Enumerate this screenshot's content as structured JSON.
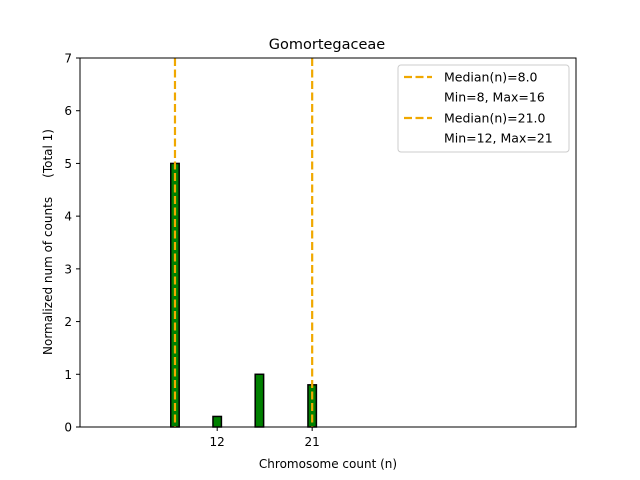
{
  "chart_data": {
    "type": "bar",
    "title": "Gomortegaceae",
    "xlabel": "Chromosome count (n)",
    "ylabel": "Normalized num of counts     (Total 1)",
    "xlim": [
      -1,
      46
    ],
    "ylim": [
      0,
      7
    ],
    "xticks": [
      12,
      21
    ],
    "yticks": [
      0,
      1,
      2,
      3,
      4,
      5,
      6,
      7
    ],
    "bar_width": 0.8,
    "bar_color": "#008000",
    "bar_edge_color": "#000000",
    "bars": [
      {
        "x": 8,
        "value": 5.0
      },
      {
        "x": 12,
        "value": 0.2
      },
      {
        "x": 16,
        "value": 1.0
      },
      {
        "x": 21,
        "value": 0.8
      }
    ],
    "median_color": "#f0a800",
    "medians": [
      {
        "x": 8,
        "label": "Median(n)=8.0",
        "range_label": "Min=8, Max=16"
      },
      {
        "x": 21,
        "label": "Median(n)=21.0",
        "range_label": "Min=12, Max=21"
      }
    ],
    "legend_position": "top-right",
    "grid": false
  }
}
